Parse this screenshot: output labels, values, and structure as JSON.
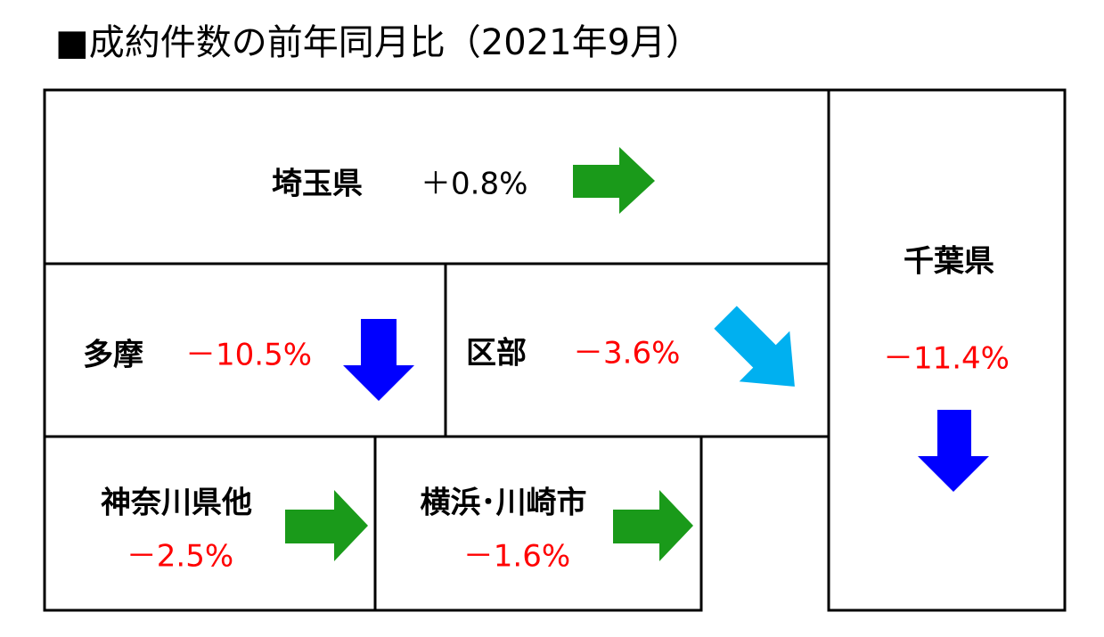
{
  "title": "■成約件数の前年同月比（2021年9月）",
  "regions": [
    {
      "name": "埼玉県",
      "change": "＋0.8%"
    },
    {
      "name": "多摩",
      "change": "－10.5%"
    },
    {
      "name": "区部",
      "change": "－3.6%"
    },
    {
      "name": "千葉県",
      "change": "－11.4%"
    },
    {
      "name": "神奈川県他",
      "change": "－2.5%"
    },
    {
      "name": "横浜･川崎市",
      "change": "－1.6%"
    }
  ]
}
